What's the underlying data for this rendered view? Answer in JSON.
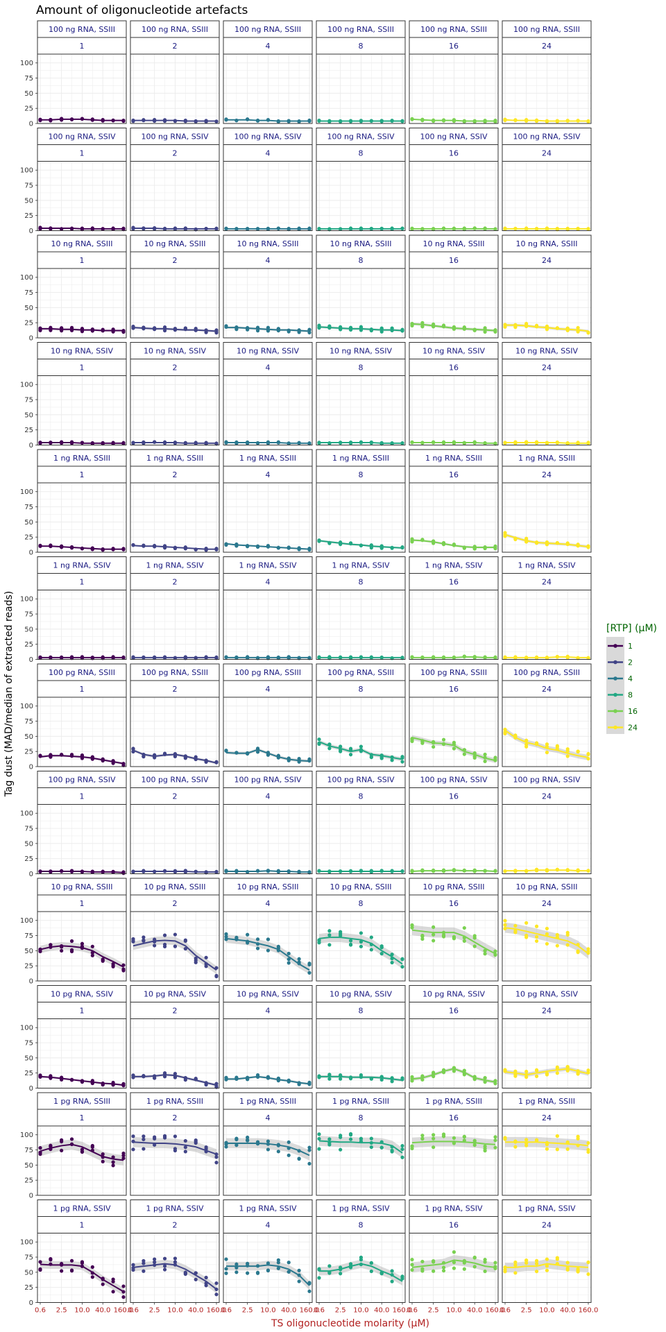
{
  "chart_data": {
    "type": "scatter",
    "title": "Amount of oligonucleotide artefacts",
    "xlabel": "TS oligonucleotide molarity (μM)",
    "ylabel": "Tag dust (MAD/median of extracted reads)",
    "x_scale": "log",
    "x_ticks": [
      "0.6",
      "2.5",
      "10.0",
      "40.0",
      "160.0"
    ],
    "x_values": [
      0.6,
      1.2,
      2.5,
      5,
      10,
      20,
      40,
      80,
      160
    ],
    "ylim": [
      0,
      110
    ],
    "y_ticks": [
      0,
      25,
      50,
      75,
      100
    ],
    "grid": true,
    "smoother": "loess with grey confidence band",
    "legend": {
      "title": "[RTP] (μM)",
      "position": "right",
      "entries": [
        "1",
        "2",
        "4",
        "8",
        "16",
        "24"
      ],
      "colors": [
        "#440154",
        "#414487",
        "#2A788E",
        "#22A884",
        "#7AD151",
        "#FDE725"
      ]
    },
    "columns": [
      "1",
      "2",
      "4",
      "8",
      "16",
      "24"
    ],
    "rows": [
      {
        "label": "100 ng RNA, SSIII",
        "trend": [
          [
            6,
            6,
            7,
            7,
            7,
            6,
            5,
            5,
            5
          ],
          [
            5,
            5,
            5,
            5,
            5,
            4,
            4,
            4,
            4
          ],
          [
            6,
            6,
            6,
            5,
            5,
            4,
            4,
            4,
            4
          ],
          [
            4,
            4,
            4,
            4,
            4,
            4,
            4,
            4,
            4
          ],
          [
            7,
            6,
            5,
            5,
            5,
            4,
            4,
            4,
            4
          ],
          [
            6,
            5,
            5,
            5,
            4,
            4,
            4,
            4,
            4
          ]
        ]
      },
      {
        "label": "100 ng RNA, SSIV",
        "trend": [
          [
            4,
            4,
            4,
            4,
            3,
            3,
            3,
            3,
            3
          ],
          [
            4,
            4,
            4,
            3,
            3,
            3,
            3,
            3,
            3
          ],
          [
            3,
            3,
            3,
            3,
            3,
            3,
            3,
            3,
            3
          ],
          [
            3,
            3,
            3,
            3,
            3,
            3,
            3,
            3,
            3
          ],
          [
            3,
            3,
            3,
            3,
            3,
            3,
            3,
            3,
            3
          ],
          [
            3,
            3,
            3,
            3,
            3,
            3,
            3,
            3,
            3
          ]
        ]
      },
      {
        "label": "10 ng RNA, SSIII",
        "trend": [
          [
            15,
            15,
            14,
            14,
            13,
            13,
            12,
            12,
            12
          ],
          [
            17,
            16,
            15,
            15,
            14,
            13,
            13,
            12,
            11
          ],
          [
            17,
            17,
            16,
            15,
            14,
            13,
            13,
            12,
            11
          ],
          [
            18,
            17,
            16,
            15,
            15,
            14,
            13,
            13,
            12
          ],
          [
            23,
            22,
            20,
            18,
            16,
            15,
            14,
            13,
            12
          ],
          [
            21,
            21,
            20,
            18,
            17,
            15,
            14,
            13,
            11
          ]
        ]
      },
      {
        "label": "10 ng RNA, SSIV",
        "trend": [
          [
            4,
            4,
            4,
            4,
            3,
            3,
            3,
            3,
            3
          ],
          [
            4,
            4,
            4,
            4,
            4,
            3,
            3,
            3,
            3
          ],
          [
            4,
            4,
            4,
            4,
            4,
            4,
            3,
            3,
            3
          ],
          [
            4,
            4,
            4,
            4,
            4,
            4,
            3,
            3,
            3
          ],
          [
            4,
            4,
            4,
            4,
            4,
            4,
            4,
            3,
            3
          ],
          [
            4,
            4,
            4,
            4,
            4,
            4,
            3,
            3,
            3
          ]
        ]
      },
      {
        "label": "1 ng RNA, SSIII",
        "trend": [
          [
            10,
            10,
            9,
            8,
            7,
            6,
            5,
            5,
            5
          ],
          [
            11,
            10,
            10,
            9,
            8,
            7,
            6,
            5,
            5
          ],
          [
            14,
            12,
            11,
            10,
            9,
            8,
            7,
            6,
            5
          ],
          [
            19,
            17,
            15,
            13,
            12,
            10,
            9,
            8,
            7
          ],
          [
            20,
            19,
            17,
            14,
            11,
            9,
            8,
            8,
            8
          ],
          [
            29,
            24,
            19,
            16,
            15,
            14,
            13,
            11,
            9
          ]
        ]
      },
      {
        "label": "1 ng RNA, SSIV",
        "trend": [
          [
            3,
            3,
            3,
            3,
            3,
            3,
            3,
            3,
            3
          ],
          [
            3,
            3,
            3,
            3,
            3,
            3,
            3,
            3,
            3
          ],
          [
            3,
            3,
            3,
            3,
            3,
            3,
            3,
            3,
            3
          ],
          [
            3,
            3,
            3,
            3,
            3,
            3,
            3,
            3,
            3
          ],
          [
            3,
            3,
            3,
            3,
            3,
            4,
            4,
            3,
            3
          ],
          [
            3,
            3,
            3,
            3,
            3,
            4,
            4,
            3,
            3
          ]
        ]
      },
      {
        "label": "100 pg RNA, SSIII",
        "trend": [
          [
            16,
            18,
            18,
            17,
            16,
            14,
            11,
            8,
            5
          ],
          [
            27,
            20,
            17,
            19,
            20,
            17,
            13,
            10,
            6
          ],
          [
            23,
            22,
            22,
            28,
            22,
            16,
            12,
            10,
            9
          ],
          [
            41,
            34,
            30,
            25,
            28,
            20,
            18,
            15,
            12
          ],
          [
            48,
            44,
            39,
            38,
            35,
            25,
            20,
            14,
            10
          ],
          [
            60,
            48,
            40,
            36,
            30,
            27,
            22,
            18,
            15
          ]
        ]
      },
      {
        "label": "100 pg RNA, SSIV",
        "trend": [
          [
            4,
            4,
            4,
            4,
            4,
            3,
            3,
            3,
            2
          ],
          [
            4,
            4,
            4,
            4,
            4,
            4,
            3,
            3,
            3
          ],
          [
            4,
            4,
            4,
            4,
            5,
            4,
            4,
            3,
            3
          ],
          [
            4,
            4,
            4,
            4,
            4,
            4,
            4,
            4,
            4
          ],
          [
            4,
            5,
            5,
            5,
            6,
            5,
            5,
            5,
            4
          ],
          [
            5,
            5,
            5,
            6,
            6,
            6,
            6,
            5,
            5
          ]
        ]
      },
      {
        "label": "10 pg RNA, SSIII",
        "trend": [
          [
            52,
            56,
            58,
            57,
            55,
            50,
            40,
            32,
            23
          ],
          [
            58,
            62,
            66,
            67,
            66,
            58,
            42,
            30,
            18
          ],
          [
            70,
            68,
            66,
            62,
            58,
            52,
            40,
            28,
            18
          ],
          [
            70,
            72,
            72,
            70,
            68,
            62,
            50,
            40,
            28
          ],
          [
            84,
            82,
            80,
            80,
            80,
            74,
            64,
            54,
            45
          ],
          [
            88,
            86,
            82,
            78,
            74,
            70,
            66,
            58,
            45
          ]
        ]
      },
      {
        "label": "10 pg RNA, SSIV",
        "trend": [
          [
            19,
            18,
            16,
            14,
            12,
            10,
            8,
            7,
            5
          ],
          [
            19,
            19,
            20,
            22,
            21,
            17,
            13,
            9,
            5
          ],
          [
            15,
            15,
            17,
            19,
            17,
            14,
            12,
            9,
            7
          ],
          [
            19,
            19,
            19,
            18,
            18,
            18,
            17,
            15,
            13
          ],
          [
            15,
            17,
            22,
            28,
            32,
            26,
            17,
            13,
            10
          ],
          [
            27,
            25,
            22,
            25,
            28,
            30,
            32,
            28,
            24
          ]
        ]
      },
      {
        "label": "1 pg RNA, SSIII",
        "trend": [
          [
            73,
            78,
            82,
            84,
            80,
            72,
            64,
            60,
            58
          ],
          [
            88,
            87,
            86,
            86,
            85,
            83,
            80,
            74,
            68
          ],
          [
            86,
            86,
            86,
            86,
            85,
            83,
            80,
            74,
            66
          ],
          [
            90,
            89,
            88,
            88,
            87,
            87,
            86,
            82,
            70
          ],
          [
            87,
            88,
            89,
            89,
            89,
            88,
            87,
            85,
            84
          ],
          [
            88,
            88,
            88,
            88,
            87,
            86,
            85,
            84,
            82
          ]
        ]
      },
      {
        "label": "1 pg RNA, SSIV",
        "trend": [
          [
            63,
            62,
            62,
            62,
            60,
            50,
            38,
            28,
            18
          ],
          [
            58,
            60,
            62,
            64,
            62,
            55,
            45,
            35,
            22
          ],
          [
            60,
            60,
            60,
            60,
            62,
            60,
            55,
            45,
            28
          ],
          [
            52,
            52,
            55,
            60,
            64,
            60,
            52,
            45,
            35
          ],
          [
            58,
            60,
            62,
            64,
            70,
            68,
            65,
            60,
            58
          ],
          [
            58,
            58,
            60,
            60,
            64,
            62,
            60,
            59,
            58
          ]
        ]
      }
    ]
  }
}
